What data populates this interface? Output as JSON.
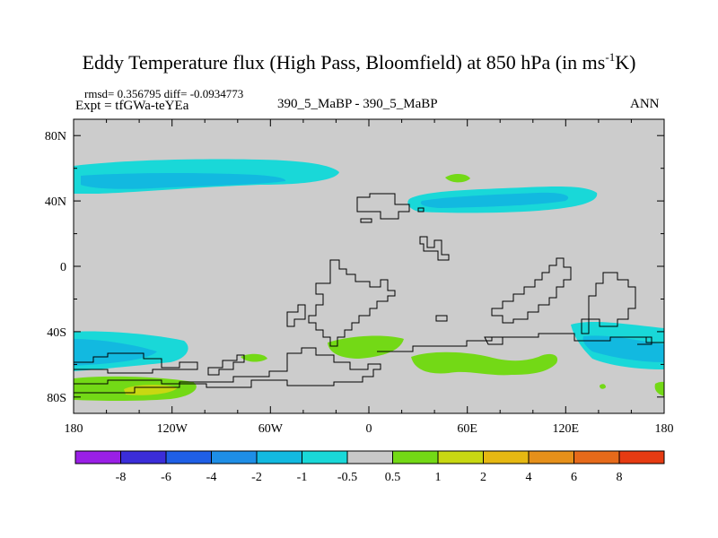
{
  "title": {
    "main": "Eddy Temperature flux (High Pass, Bloomfield) at 850 hPa (in ms",
    "sup": "-1",
    "end": "K)"
  },
  "stats": {
    "rmsd_line": "rmsd= 0.356795 diff= -0.0934773",
    "expt_line": "Expt = tfGWa-teYEa"
  },
  "case_label": "390_5_MaBP - 390_5_MaBP",
  "season_label": "ANN",
  "map": {
    "lon_ticks": [
      "180",
      "120W",
      "60W",
      "0",
      "60E",
      "120E",
      "180"
    ],
    "lat_ticks": [
      "80N",
      "40N",
      "0",
      "40S",
      "80S"
    ],
    "lon_range": [
      -180,
      180
    ],
    "lat_range": [
      -90,
      90
    ]
  },
  "colorbar": {
    "labels": [
      "-8",
      "-6",
      "-4",
      "-2",
      "-1",
      "-0.5",
      "0.5",
      "1",
      "2",
      "4",
      "6",
      "8"
    ],
    "colors": [
      "#9a1fe6",
      "#3b2dd9",
      "#1f5fe6",
      "#1e8ee6",
      "#12b9e0",
      "#19d8d8",
      "#c8c8c8",
      "#73d916",
      "#c8d812",
      "#e6b812",
      "#e6901a",
      "#e66a1a",
      "#e63b12"
    ]
  },
  "colors": {
    "land_background": "#cccccc",
    "cyan_anomaly": "#19d8d8",
    "sky_anomaly": "#12b9e0",
    "green_anomaly": "#73d916",
    "yellow_anomaly": "#c8d812"
  }
}
